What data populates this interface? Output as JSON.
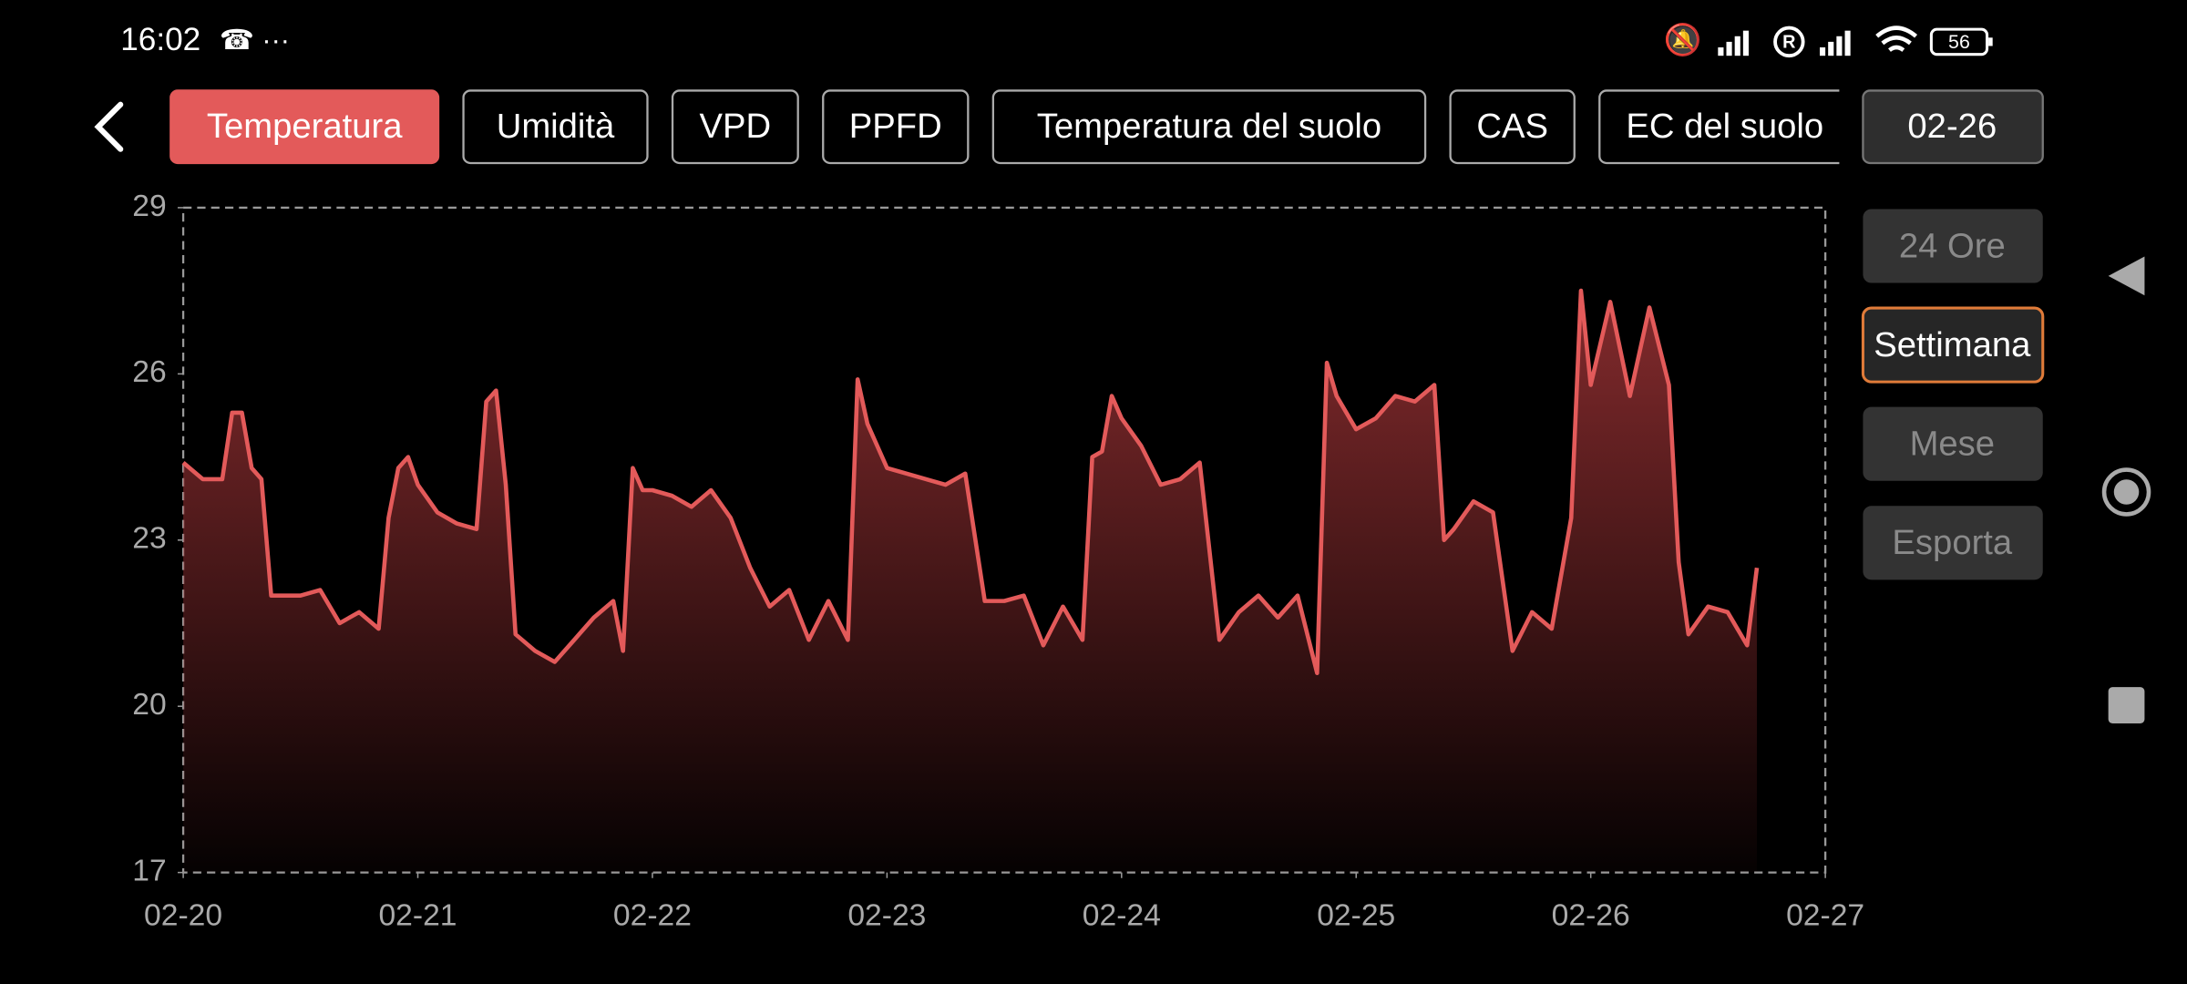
{
  "status_bar": {
    "time": "16:02",
    "battery": "56"
  },
  "tabs": [
    "Temperatura",
    "Umidità",
    "VPD",
    "PPFD",
    "Temperatura del suolo",
    "CAS",
    "EC del suolo"
  ],
  "date_button": "02-26",
  "range_buttons": [
    "24 Ore",
    "Settimana",
    "Mese",
    "Esporta"
  ],
  "chart_data": {
    "type": "line",
    "color": "#e35a5a",
    "x": [
      0,
      2,
      4,
      5,
      6,
      7,
      8,
      9,
      10,
      12,
      14,
      16,
      18,
      20,
      21,
      22,
      23,
      24,
      26,
      28,
      30,
      31,
      32,
      33,
      34,
      36,
      38,
      40,
      42,
      44,
      45,
      46,
      47,
      48,
      50,
      52,
      54,
      56,
      58,
      60,
      62,
      64,
      66,
      68,
      69,
      70,
      72,
      74,
      76,
      78,
      80,
      82,
      84,
      86,
      88,
      90,
      92,
      93,
      94,
      95,
      96,
      98,
      100,
      102,
      104,
      106,
      108,
      110,
      112,
      114,
      116,
      117,
      118,
      120,
      122,
      124,
      126,
      128,
      129,
      130,
      132,
      134,
      136,
      138,
      140,
      142,
      143,
      144,
      146,
      148,
      150,
      152,
      153,
      154,
      156,
      158,
      160,
      161
    ],
    "values": [
      24.4,
      24.1,
      24.1,
      25.3,
      25.3,
      24.3,
      24.1,
      22.0,
      22.0,
      22.0,
      22.1,
      21.5,
      21.7,
      21.4,
      23.4,
      24.3,
      24.5,
      24.0,
      23.5,
      23.3,
      23.2,
      25.5,
      25.7,
      24.0,
      21.3,
      21.0,
      20.8,
      21.2,
      21.6,
      21.9,
      21.0,
      24.3,
      23.9,
      23.9,
      23.8,
      23.6,
      23.9,
      23.4,
      22.5,
      21.8,
      22.1,
      21.2,
      21.9,
      21.2,
      25.9,
      25.1,
      24.3,
      24.2,
      24.1,
      24.0,
      24.2,
      21.9,
      21.9,
      22.0,
      21.1,
      21.8,
      21.2,
      24.5,
      24.6,
      25.6,
      25.2,
      24.7,
      24.0,
      24.1,
      24.4,
      21.2,
      21.7,
      22.0,
      21.6,
      22.0,
      20.6,
      26.2,
      25.6,
      25.0,
      25.2,
      25.6,
      25.5,
      25.8,
      23.0,
      23.2,
      23.7,
      23.5,
      21.0,
      21.7,
      21.4,
      23.4,
      27.5,
      25.8,
      27.3,
      25.6,
      27.2,
      25.8,
      22.6,
      21.3,
      21.8,
      21.7,
      21.1,
      22.5
    ],
    "xlim": [
      0,
      168
    ],
    "xticks": [
      {
        "value": 0,
        "label": "02-20"
      },
      {
        "value": 24,
        "label": "02-21"
      },
      {
        "value": 48,
        "label": "02-22"
      },
      {
        "value": 72,
        "label": "02-23"
      },
      {
        "value": 96,
        "label": "02-24"
      },
      {
        "value": 120,
        "label": "02-25"
      },
      {
        "value": 144,
        "label": "02-26"
      },
      {
        "value": 168,
        "label": "02-27"
      }
    ],
    "ylim": [
      17,
      29
    ],
    "yticks": [
      17,
      20,
      23,
      26,
      29
    ]
  }
}
